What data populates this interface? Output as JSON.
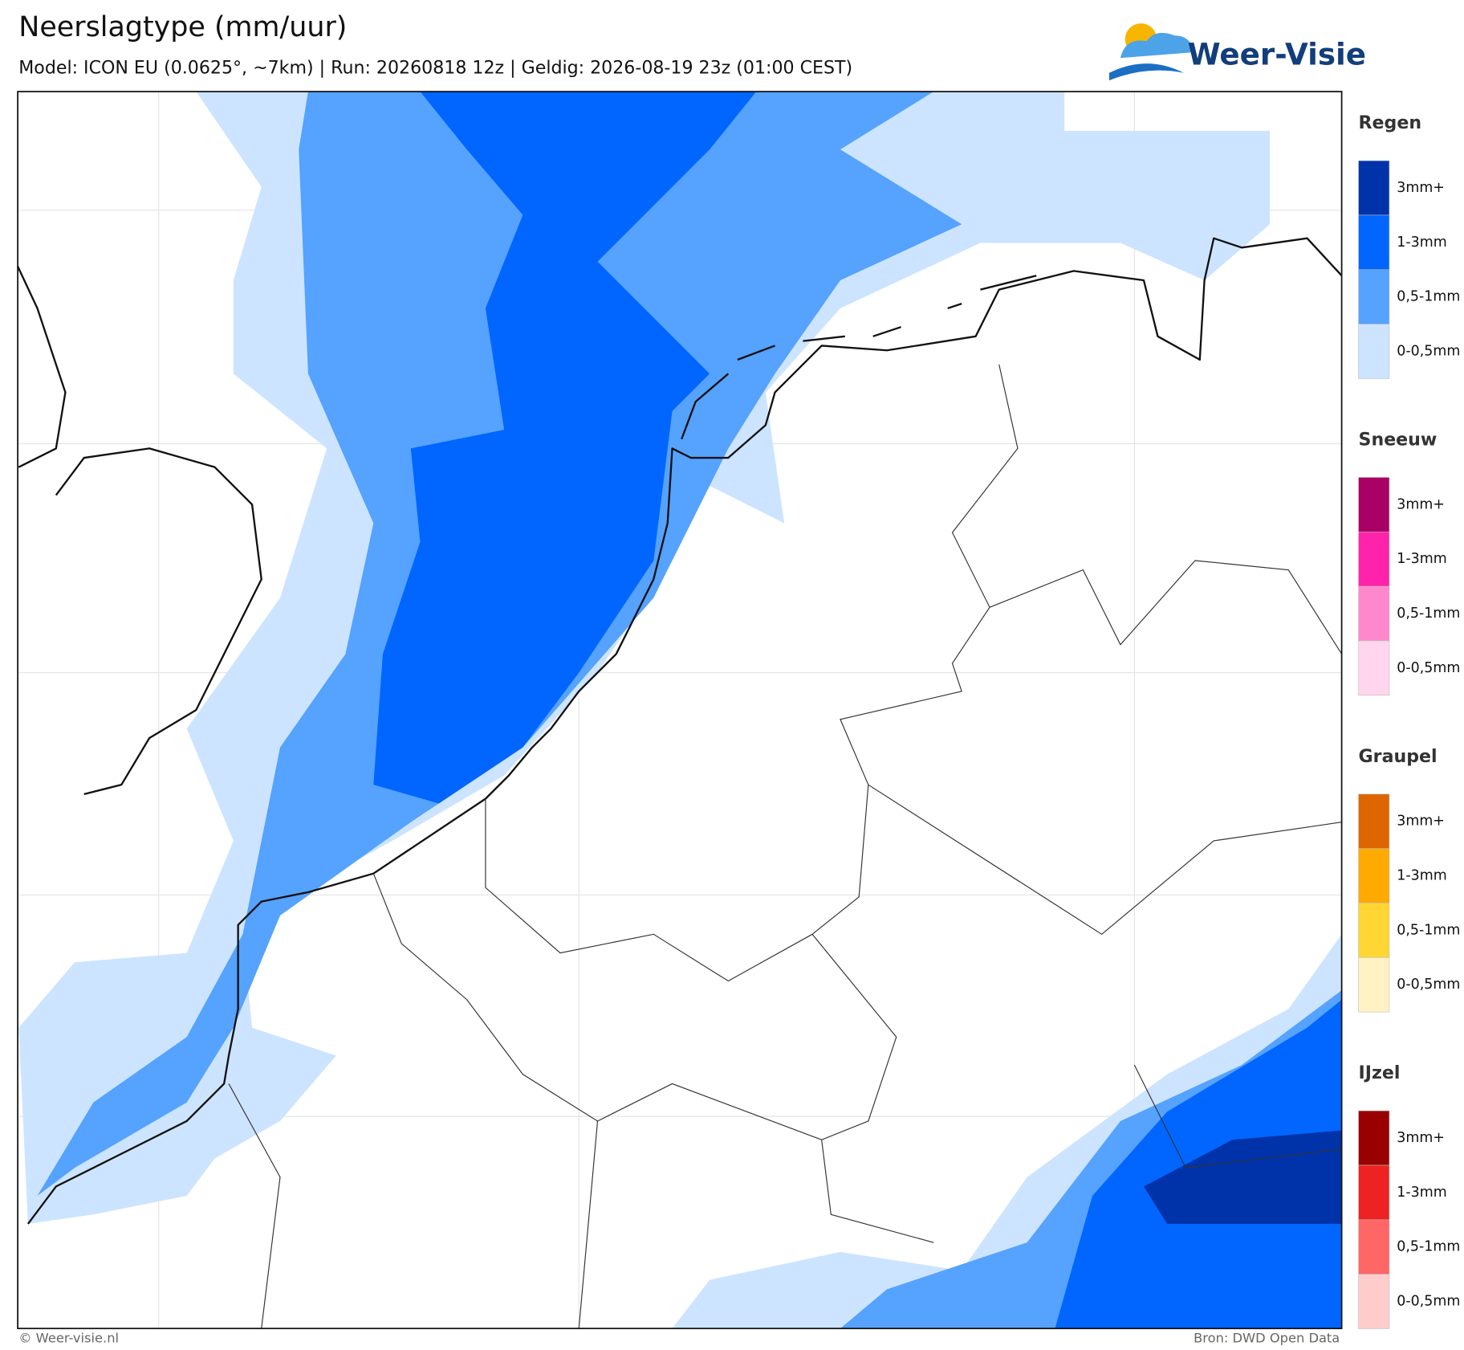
{
  "header": {
    "title": "Neerslagtype (mm/uur)",
    "subtitle": "Model: ICON EU (0.0625°, ~7km)  |  Run: 20260818 12z  |  Geldig: 2026-08-19 23z (01:00 CEST)",
    "logo": "Weer-Visie"
  },
  "legend": [
    {
      "name": "Regen",
      "items": [
        {
          "label": "3mm+",
          "color": "#0033aa"
        },
        {
          "label": "1-3mm",
          "color": "#0066ff"
        },
        {
          "label": "0,5-1mm",
          "color": "#55a2ff"
        },
        {
          "label": "0-0,5mm",
          "color": "#cce4ff"
        }
      ]
    },
    {
      "name": "Sneeuw",
      "items": [
        {
          "label": "3mm+",
          "color": "#aa0066"
        },
        {
          "label": "1-3mm",
          "color": "#ff22aa"
        },
        {
          "label": "0,5-1mm",
          "color": "#ff88cc"
        },
        {
          "label": "0-0,5mm",
          "color": "#ffd6ee"
        }
      ]
    },
    {
      "name": "Graupel",
      "items": [
        {
          "label": "3mm+",
          "color": "#dd6600"
        },
        {
          "label": "1-3mm",
          "color": "#ffaa00"
        },
        {
          "label": "0,5-1mm",
          "color": "#ffd633"
        },
        {
          "label": "0-0,5mm",
          "color": "#fff2c4"
        }
      ]
    },
    {
      "name": "IJzel",
      "items": [
        {
          "label": "3mm+",
          "color": "#990000"
        },
        {
          "label": "1-3mm",
          "color": "#ee2222"
        },
        {
          "label": "0,5-1mm",
          "color": "#ff6666"
        },
        {
          "label": "0-0,5mm",
          "color": "#ffcccc"
        }
      ]
    }
  ],
  "footer": {
    "left": "© Weer-visie.nl",
    "right": "Bron: DWD Open Data"
  }
}
